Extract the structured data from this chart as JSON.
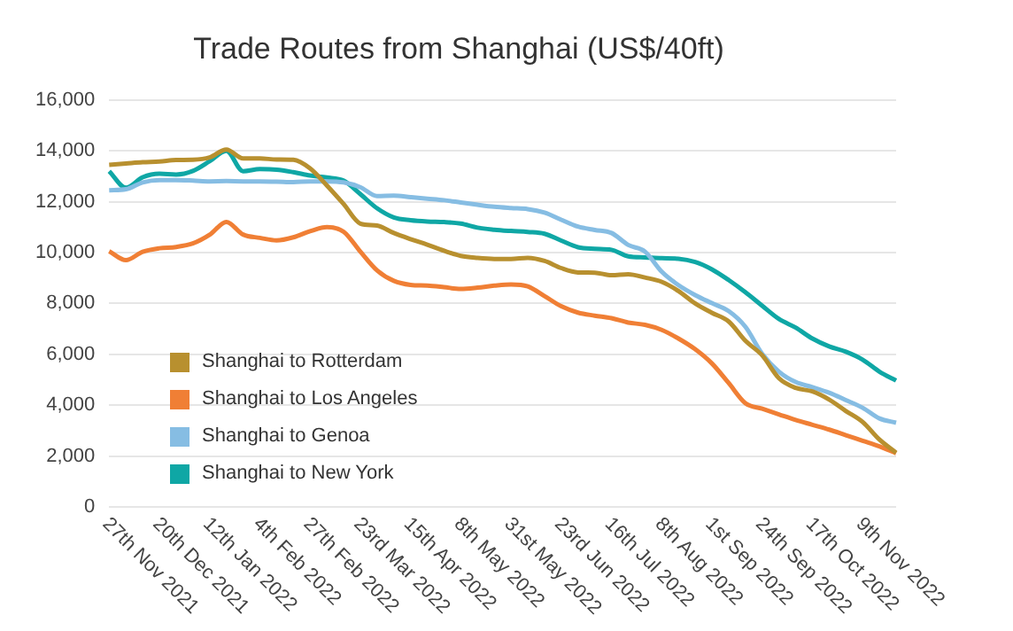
{
  "chart_data": {
    "type": "line",
    "title": "Trade Routes from Shanghai (US$/40ft)",
    "categories": [
      "27th Nov 2021",
      null,
      null,
      "20th Dec 2021",
      null,
      null,
      "12th Jan 2022",
      null,
      null,
      "4th Feb 2022",
      null,
      null,
      "27th Feb 2022",
      null,
      null,
      "23rd Mar 2022",
      null,
      null,
      "15th Apr 2022",
      null,
      null,
      "8th May 2022",
      null,
      null,
      "31st May 2022",
      null,
      null,
      "23rd Jun 2022",
      null,
      null,
      "16th Jul 2022",
      null,
      null,
      "8th Aug 2022",
      null,
      null,
      "1st Sep 2022",
      null,
      null,
      "24th Sep 2022",
      null,
      null,
      "17th Oct 2022",
      null,
      null,
      "9th Nov 2022",
      null,
      null
    ],
    "series": [
      {
        "name": "Shanghai to Rotterdam",
        "color": "#b8902f",
        "values": [
          13450,
          13500,
          13550,
          13580,
          13640,
          13650,
          13740,
          14050,
          13700,
          13700,
          13660,
          13650,
          13310,
          12640,
          11910,
          11140,
          11060,
          10770,
          10530,
          10310,
          10070,
          9870,
          9790,
          9750,
          9750,
          9790,
          9670,
          9390,
          9220,
          9210,
          9110,
          9150,
          9020,
          8850,
          8490,
          8000,
          7630,
          7290,
          6530,
          5960,
          5060,
          4680,
          4540,
          4220,
          3770,
          3340,
          2650,
          2130
        ]
      },
      {
        "name": "Shanghai to Los Angeles",
        "color": "#f07f35",
        "values": [
          10050,
          9700,
          10030,
          10170,
          10220,
          10360,
          10700,
          11200,
          10710,
          10580,
          10480,
          10600,
          10840,
          11000,
          10820,
          10040,
          9300,
          8890,
          8730,
          8700,
          8640,
          8570,
          8620,
          8700,
          8750,
          8670,
          8290,
          7890,
          7640,
          7520,
          7420,
          7250,
          7160,
          6960,
          6620,
          6200,
          5640,
          4870,
          4080,
          3860,
          3640,
          3420,
          3230,
          3040,
          2820,
          2600,
          2380,
          2110
        ]
      },
      {
        "name": "Shanghai to Genoa",
        "color": "#86bde3",
        "values": [
          12450,
          12490,
          12760,
          12850,
          12850,
          12830,
          12800,
          12810,
          12800,
          12800,
          12790,
          12770,
          12800,
          12800,
          12760,
          12570,
          12220,
          12240,
          12180,
          12120,
          12060,
          11970,
          11880,
          11800,
          11750,
          11710,
          11570,
          11290,
          11020,
          10890,
          10770,
          10300,
          10040,
          9250,
          8720,
          8330,
          8010,
          7700,
          7080,
          6020,
          5320,
          4910,
          4710,
          4490,
          4200,
          3900,
          3480,
          3310
        ]
      },
      {
        "name": "Shanghai to New York",
        "color": "#0fa7a5",
        "values": [
          13200,
          12550,
          12960,
          13100,
          13070,
          13210,
          13590,
          14000,
          13200,
          13280,
          13260,
          13160,
          13030,
          12950,
          12830,
          12300,
          11740,
          11380,
          11270,
          11220,
          11200,
          11140,
          10980,
          10900,
          10850,
          10810,
          10740,
          10470,
          10210,
          10150,
          10110,
          9850,
          9810,
          9780,
          9760,
          9630,
          9340,
          8920,
          8440,
          7910,
          7390,
          7050,
          6620,
          6310,
          6100,
          5790,
          5320,
          4970
        ]
      }
    ],
    "ylim": [
      0,
      16000
    ],
    "yticks": [
      {
        "value": 0,
        "label": "0"
      },
      {
        "value": 2000,
        "label": "2,000"
      },
      {
        "value": 4000,
        "label": "4,000"
      },
      {
        "value": 6000,
        "label": "6,000"
      },
      {
        "value": 8000,
        "label": "8,000"
      },
      {
        "value": 10000,
        "label": "10,000"
      },
      {
        "value": 12000,
        "label": "12,000"
      },
      {
        "value": 14000,
        "label": "14,000"
      },
      {
        "value": 16000,
        "label": "16,000"
      }
    ],
    "grid": "y",
    "legend": "bottom left",
    "marker": "none",
    "line_style": "solid"
  }
}
